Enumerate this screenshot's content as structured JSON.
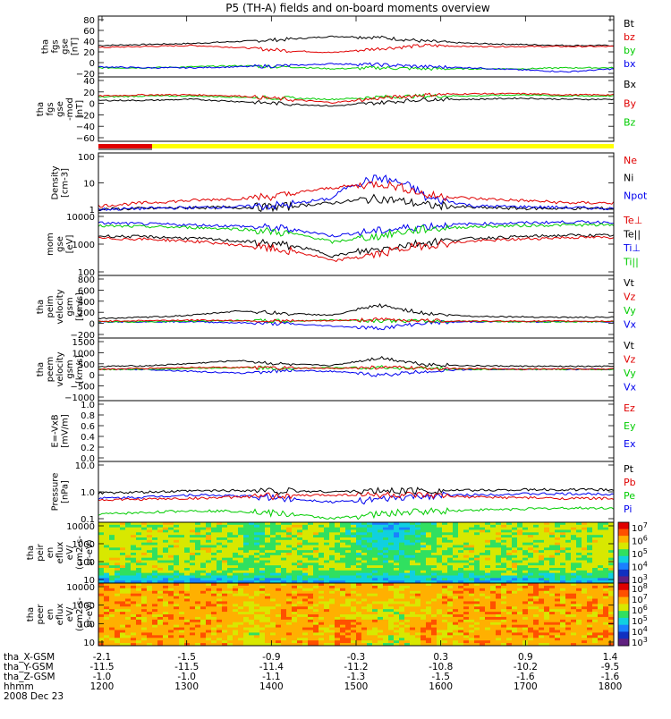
{
  "title": "P5 (TH-A) fields and on-board moments overview",
  "colors": {
    "black": "#000000",
    "red": "#e00000",
    "green": "#00cc00",
    "blue": "#0000ee",
    "yellow": "#ffff00",
    "dark_green": "#008800"
  },
  "time_axis": {
    "ticks": [
      "1200",
      "1300",
      "1400",
      "1500",
      "1600",
      "1700",
      "1800"
    ],
    "ephemeris": [
      {
        "label": "tha_X-GSM",
        "values": [
          "-2.1",
          "-1.5",
          "-0.9",
          "-0.3",
          "0.3",
          "0.9",
          "1.4"
        ]
      },
      {
        "label": "tha_Y-GSM",
        "values": [
          "-11.5",
          "-11.5",
          "-11.4",
          "-11.2",
          "-10.8",
          "-10.2",
          "-9.5"
        ]
      },
      {
        "label": "tha_Z-GSM",
        "values": [
          "-1.0",
          "-1.0",
          "-1.1",
          "-1.3",
          "-1.5",
          "-1.6",
          "-1.6"
        ]
      },
      {
        "label": "hhmm",
        "values": [
          "1200",
          "1300",
          "1400",
          "1500",
          "1600",
          "1700",
          "1800"
        ]
      }
    ],
    "date": "2008 Dec 23"
  },
  "chart_data": [
    {
      "type": "line",
      "ylabel": [
        "tha",
        "fgs",
        "gse",
        "[nT]"
      ],
      "ylim": [
        -30,
        90
      ],
      "yticks": [
        "80",
        "60",
        "40",
        "20",
        "0",
        "−20"
      ],
      "legend": [
        {
          "name": "Bt",
          "color": "#000000"
        },
        {
          "name": "bz",
          "color": "#e00000"
        },
        {
          "name": "by",
          "color": "#00cc00"
        },
        {
          "name": "bx",
          "color": "#0000ee"
        }
      ],
      "series": [
        {
          "name": "Bt",
          "color": "#000000",
          "values": [
            32,
            34,
            36,
            40,
            44,
            50,
            48,
            40,
            36,
            34,
            32,
            32
          ]
        },
        {
          "name": "bz",
          "color": "#e00000",
          "values": [
            28,
            30,
            32,
            28,
            22,
            18,
            26,
            32,
            30,
            30,
            30,
            30
          ]
        },
        {
          "name": "by",
          "color": "#00cc00",
          "values": [
            -12,
            -12,
            -10,
            -8,
            -10,
            -14,
            -12,
            -14,
            -14,
            -14,
            -12,
            -12
          ]
        },
        {
          "name": "bx",
          "color": "#0000ee",
          "values": [
            -10,
            -12,
            -12,
            -10,
            -8,
            -4,
            -6,
            -10,
            -12,
            -16,
            -20,
            -14
          ]
        }
      ]
    },
    {
      "type": "line",
      "ylabel": [
        "tha",
        "fgs",
        "gse",
        "-mod",
        "[nT]"
      ],
      "ylim": [
        -75,
        40
      ],
      "yticks": [
        "40",
        "20",
        "0",
        "−20",
        "−40",
        "−60"
      ],
      "legend": [
        {
          "name": "Bx",
          "color": "#000000"
        },
        {
          "name": "By",
          "color": "#e00000"
        },
        {
          "name": "Bz",
          "color": "#00cc00"
        }
      ],
      "series": [
        {
          "name": "Bz",
          "color": "#00cc00",
          "values": [
            4,
            6,
            6,
            4,
            2,
            0,
            4,
            6,
            6,
            8,
            6,
            6
          ]
        },
        {
          "name": "By",
          "color": "#e00000",
          "values": [
            6,
            8,
            8,
            6,
            0,
            -6,
            2,
            8,
            10,
            10,
            8,
            8
          ]
        },
        {
          "name": "Bx",
          "color": "#000000",
          "values": [
            -2,
            -2,
            0,
            -4,
            -8,
            -12,
            -6,
            0,
            0,
            2,
            0,
            0
          ]
        }
      ]
    },
    {
      "type": "line",
      "ylabel": [
        "Density",
        "[cm-3]"
      ],
      "ylim": [
        0.8,
        200
      ],
      "yscale": "log",
      "yticks": [
        "100",
        "10",
        "1"
      ],
      "legend": [
        {
          "name": "Ne",
          "color": "#e00000"
        },
        {
          "name": "Ni",
          "color": "#000000"
        },
        {
          "name": "Npot",
          "color": "#0000ee"
        }
      ],
      "series": [
        {
          "name": "Ni",
          "color": "#000000",
          "values": [
            1.1,
            1.2,
            1.3,
            1.3,
            1.4,
            2.0,
            3.0,
            1.6,
            1.3,
            1.2,
            1.2,
            1.2
          ]
        },
        {
          "name": "Npot",
          "color": "#0000ee",
          "values": [
            1.1,
            1.2,
            1.3,
            1.4,
            1.6,
            3.0,
            20,
            3.0,
            1.5,
            1.4,
            1.3,
            1.2
          ]
        },
        {
          "name": "Ne",
          "color": "#e00000",
          "values": [
            1.5,
            2.0,
            2.5,
            3.0,
            4.0,
            8.0,
            12,
            4.0,
            3.0,
            2.5,
            2.0,
            2.0
          ]
        }
      ]
    },
    {
      "type": "line",
      "ylabel": [
        "mom",
        "gse",
        "[eV]"
      ],
      "ylim": [
        30,
        15000
      ],
      "yscale": "log",
      "yticks": [
        "10000",
        "1000",
        "100"
      ],
      "legend": [
        {
          "name": "Te⊥",
          "color": "#e00000"
        },
        {
          "name": "Te||",
          "color": "#000000"
        },
        {
          "name": "Ti⊥",
          "color": "#0000ee"
        },
        {
          "name": "Ti||",
          "color": "#00cc00"
        }
      ],
      "series": [
        {
          "name": "Ti⊥",
          "color": "#0000ee",
          "values": [
            5500,
            5000,
            4500,
            4000,
            3000,
            1500,
            2500,
            4000,
            5000,
            5500,
            6000,
            6000
          ]
        },
        {
          "name": "Ti||",
          "color": "#00cc00",
          "values": [
            4000,
            3800,
            3500,
            3000,
            2000,
            800,
            1500,
            3000,
            3800,
            4200,
            4500,
            4500
          ]
        },
        {
          "name": "Te||",
          "color": "#000000",
          "values": [
            1500,
            1400,
            1200,
            900,
            600,
            200,
            400,
            800,
            1200,
            1400,
            1600,
            1600
          ]
        },
        {
          "name": "Te⊥",
          "color": "#e00000",
          "values": [
            1200,
            1100,
            900,
            600,
            350,
            120,
            250,
            600,
            900,
            1100,
            1300,
            1300
          ]
        }
      ]
    },
    {
      "type": "line",
      "ylabel": [
        "tha",
        "peim",
        "velocity",
        "gsm",
        "[km/s]"
      ],
      "ylim": [
        -300,
        850
      ],
      "yticks": [
        "800",
        "600",
        "400",
        "200",
        "0",
        "−200"
      ],
      "legend": [
        {
          "name": "Vt",
          "color": "#000000"
        },
        {
          "name": "Vz",
          "color": "#e00000"
        },
        {
          "name": "Vy",
          "color": "#00cc00"
        },
        {
          "name": "Vx",
          "color": "#0000ee"
        }
      ],
      "series": [
        {
          "name": "Vx",
          "color": "#0000ee",
          "values": [
            0,
            0,
            0,
            -20,
            -40,
            -80,
            -120,
            -20,
            0,
            0,
            0,
            0
          ]
        },
        {
          "name": "Vy",
          "color": "#00cc00",
          "values": [
            0,
            0,
            10,
            20,
            10,
            30,
            20,
            10,
            10,
            0,
            0,
            0
          ]
        },
        {
          "name": "Vz",
          "color": "#e00000",
          "values": [
            10,
            20,
            30,
            20,
            10,
            20,
            40,
            20,
            10,
            10,
            10,
            10
          ]
        },
        {
          "name": "Vt",
          "color": "#000000",
          "values": [
            60,
            80,
            120,
            200,
            150,
            120,
            300,
            150,
            100,
            90,
            80,
            80
          ]
        }
      ]
    },
    {
      "type": "line",
      "ylabel": [
        "tha",
        "peem",
        "velocity",
        "gsm",
        "[km/s]"
      ],
      "ylim": [
        -1600,
        1600
      ],
      "yticks": [
        "1500",
        "1000",
        "500",
        "0",
        "−500",
        "−1000"
      ],
      "legend": [
        {
          "name": "Vt",
          "color": "#000000"
        },
        {
          "name": "Vz",
          "color": "#e00000"
        },
        {
          "name": "Vy",
          "color": "#00cc00"
        },
        {
          "name": "Vx",
          "color": "#0000ee"
        }
      ],
      "series": [
        {
          "name": "Vx",
          "color": "#0000ee",
          "values": [
            0,
            0,
            -100,
            -200,
            -50,
            -100,
            -300,
            -100,
            0,
            0,
            0,
            0
          ]
        },
        {
          "name": "Vy",
          "color": "#00cc00",
          "values": [
            0,
            0,
            50,
            100,
            50,
            80,
            100,
            50,
            0,
            0,
            0,
            0
          ]
        },
        {
          "name": "Vz",
          "color": "#e00000",
          "values": [
            0,
            50,
            100,
            100,
            50,
            50,
            100,
            50,
            30,
            20,
            20,
            20
          ]
        },
        {
          "name": "Vt",
          "color": "#000000",
          "values": [
            150,
            180,
            300,
            450,
            250,
            200,
            600,
            250,
            180,
            160,
            150,
            150
          ]
        }
      ]
    },
    {
      "type": "line",
      "ylabel": [
        "E=-VxB",
        "[mV/m]"
      ],
      "ylim": [
        0,
        1.0
      ],
      "yticks": [
        "1.0",
        "0.8",
        "0.6",
        "0.4",
        "0.2",
        "0.0"
      ],
      "legend": [
        {
          "name": "Ez",
          "color": "#e00000"
        },
        {
          "name": "Ey",
          "color": "#00cc00"
        },
        {
          "name": "Ex",
          "color": "#0000ee"
        }
      ],
      "series": []
    },
    {
      "type": "line",
      "ylabel": [
        "Pressure",
        "[nPa]"
      ],
      "ylim": [
        0.04,
        40
      ],
      "yscale": "log",
      "yticks": [
        "10.0",
        "1.0",
        "0.1"
      ],
      "legend": [
        {
          "name": "Pt",
          "color": "#000000"
        },
        {
          "name": "Pb",
          "color": "#e00000"
        },
        {
          "name": "Pe",
          "color": "#00cc00"
        },
        {
          "name": "Pi",
          "color": "#0000ee"
        }
      ],
      "series": [
        {
          "name": "Pe",
          "color": "#00cc00",
          "values": [
            0.1,
            0.12,
            0.15,
            0.14,
            0.1,
            0.06,
            0.1,
            0.14,
            0.16,
            0.18,
            0.2,
            0.2
          ]
        },
        {
          "name": "Pi",
          "color": "#0000ee",
          "values": [
            0.6,
            0.7,
            0.9,
            0.8,
            0.6,
            0.4,
            0.5,
            0.8,
            0.9,
            1.0,
            1.0,
            1.0
          ]
        },
        {
          "name": "Pb",
          "color": "#e00000",
          "values": [
            0.5,
            0.55,
            0.6,
            0.7,
            0.8,
            0.9,
            0.9,
            0.8,
            0.7,
            0.65,
            0.6,
            0.6
          ]
        },
        {
          "name": "Pt",
          "color": "#000000",
          "values": [
            1.1,
            1.2,
            1.4,
            1.5,
            1.4,
            1.3,
            1.4,
            1.5,
            1.5,
            1.6,
            1.6,
            1.6
          ]
        }
      ]
    },
    {
      "type": "heatmap",
      "ylabel": [
        "tha",
        "peir",
        "en",
        "eflux",
        "eV/",
        "(cm2-s-",
        "sr-eV)"
      ],
      "yscale": "log",
      "yticks": [
        "10000",
        "1000",
        "100",
        "10"
      ],
      "colorbar_ticks": [
        "10^7",
        "10^6",
        "10^5",
        "10^4",
        "10^3"
      ]
    },
    {
      "type": "heatmap",
      "ylabel": [
        "tha",
        "peer",
        "en",
        "eflux",
        "eV/",
        "(cm2-s-",
        "sr-eV)"
      ],
      "yscale": "log",
      "yticks": [
        "10000",
        "1000",
        "100",
        "10"
      ],
      "colorbar_ticks": [
        "10^8",
        "10^7",
        "10^6",
        "10^5",
        "10^4",
        "10^3"
      ]
    }
  ]
}
